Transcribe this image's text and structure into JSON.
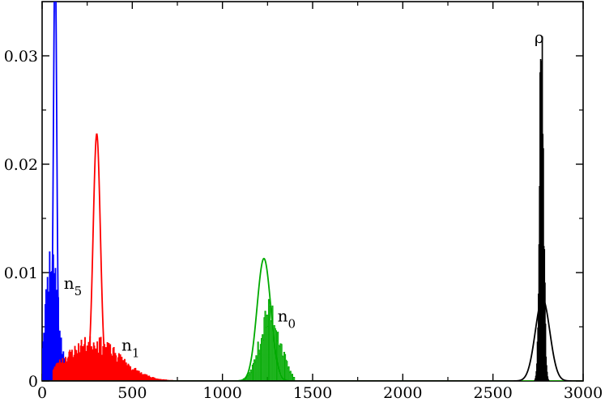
{
  "chart_data": {
    "type": "histogram",
    "xlim": [
      0,
      3000
    ],
    "ylim": [
      0,
      0.035
    ],
    "x_ticks": [
      0,
      500,
      1000,
      1500,
      2000,
      2500,
      3000
    ],
    "x_tick_labels": [
      "0",
      "500",
      "1000",
      "1500",
      "2000",
      "2500",
      "3000"
    ],
    "y_ticks": [
      0,
      0.01,
      0.02,
      0.03
    ],
    "y_tick_labels": [
      "0",
      "0.01",
      "0.02",
      "0.03"
    ],
    "grid": false,
    "series": [
      {
        "label": "n",
        "sub": "5",
        "color": "#0000ff",
        "label_pos": [
          120,
          0.0085
        ],
        "hist": {
          "mean": 55,
          "sd": 35,
          "peak": 0.011,
          "range": [
            0,
            160
          ],
          "width": 4,
          "seed": 11
        },
        "curve": {
          "mean": 72,
          "sd": 9,
          "peak": 0.04
        }
      },
      {
        "label": "n",
        "sub": "1",
        "color": "#ff0000",
        "label_pos": [
          440,
          0.0028
        ],
        "hist": {
          "mean": 280,
          "sd": 150,
          "peak": 0.0033,
          "range": [
            60,
            760
          ],
          "width": 4,
          "seed": 23
        },
        "curve": {
          "mean": 303,
          "sd": 20,
          "peak": 0.0228
        }
      },
      {
        "label": "n",
        "sub": "0",
        "color": "#00aa00",
        "label_pos": [
          1305,
          0.0055
        ],
        "hist": {
          "mean": 1265,
          "sd": 55,
          "peak": 0.006,
          "range": [
            1000,
            1400
          ],
          "width": 5,
          "seed": 37
        },
        "curve": {
          "mean": 1230,
          "sd": 38,
          "peak": 0.0113
        }
      },
      {
        "label": "ρ",
        "sub": "",
        "color": "#000000",
        "label_pos": [
          2730,
          0.0312
        ],
        "hist": {
          "mean": 2770,
          "sd": 11,
          "peak": 0.0308,
          "range": [
            2730,
            2810
          ],
          "width": 3,
          "seed": 51
        },
        "curve": {
          "mean": 2775,
          "sd": 40,
          "peak": 0.0076
        }
      }
    ]
  }
}
